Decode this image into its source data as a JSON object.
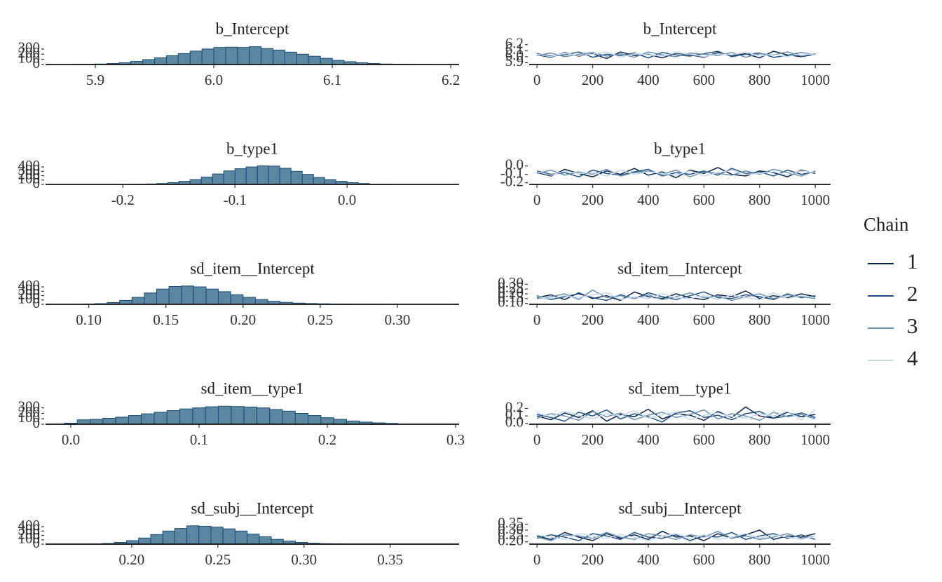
{
  "chart_data": [
    {
      "type": "histogram",
      "title": "b_Intercept",
      "color": "#5b87a3",
      "edgecolor": "#1c4a73",
      "bins": [
        5.88,
        5.89,
        5.9,
        5.91,
        5.92,
        5.93,
        5.94,
        5.95,
        5.96,
        5.97,
        5.98,
        5.99,
        6.0,
        6.01,
        6.02,
        6.03,
        6.04,
        6.05,
        6.06,
        6.07,
        6.08,
        6.09,
        6.1,
        6.11,
        6.12,
        6.13,
        6.14,
        6.15,
        6.16,
        6.17,
        6.18
      ],
      "values": [
        2,
        5,
        10,
        20,
        35,
        60,
        95,
        130,
        170,
        210,
        260,
        300,
        330,
        335,
        330,
        345,
        310,
        280,
        240,
        200,
        160,
        120,
        80,
        55,
        35,
        20,
        10,
        5,
        3,
        1
      ],
      "xlim": [
        5.858,
        6.207
      ],
      "ylim": [
        0,
        380
      ],
      "xticks": [
        5.9,
        {
          "value": 6.0,
          "label": "6.0"
        },
        6.1,
        6.2
      ],
      "yticks": [
        0,
        100,
        200,
        300
      ]
    },
    {
      "type": "line",
      "title": "b_Intercept",
      "x": [
        0,
        50,
        100,
        150,
        200,
        250,
        300,
        350,
        400,
        450,
        500,
        550,
        600,
        650,
        700,
        750,
        800,
        850,
        900,
        950,
        1000
      ],
      "series": [
        {
          "name": "1",
          "color": "#0b2447",
          "values": [
            6.03,
            5.99,
            6.07,
            6.01,
            6.05,
            5.97,
            6.08,
            6.02,
            6.04,
            5.98,
            6.06,
            6.03,
            5.99,
            6.07,
            6.02,
            6.05,
            5.98,
            6.09,
            6.03,
            6.0,
            6.04
          ]
        },
        {
          "name": "2",
          "color": "#24527f",
          "values": [
            6.05,
            6.01,
            6.03,
            6.08,
            5.99,
            6.04,
            6.02,
            6.06,
            5.98,
            6.07,
            6.03,
            6.01,
            6.05,
            6.09,
            6.0,
            6.04,
            6.06,
            5.99,
            6.02,
            6.07,
            6.03
          ]
        },
        {
          "name": "3",
          "color": "#6b8fb0",
          "values": [
            6.02,
            6.06,
            6.0,
            6.04,
            6.07,
            6.01,
            6.05,
            5.99,
            6.08,
            6.03,
            6.0,
            6.06,
            6.04,
            6.02,
            6.07,
            5.99,
            6.05,
            6.03,
            6.08,
            6.01,
            6.05
          ]
        },
        {
          "name": "4",
          "color": "#c6d9ec",
          "values": [
            6.04,
            6.0,
            6.06,
            6.02,
            6.04,
            6.08,
            5.99,
            6.05,
            6.03,
            6.01,
            6.07,
            6.04,
            6.0,
            6.05,
            6.03,
            6.08,
            6.01,
            6.04,
            6.0,
            6.06,
            6.03
          ]
        }
      ],
      "xlim": [
        -28,
        1055
      ],
      "ylim": [
        5.87,
        6.22
      ],
      "xticks": [
        0,
        200,
        400,
        600,
        800,
        1000
      ],
      "yticks": [
        5.9,
        {
          "value": 6.0,
          "label": "6.0"
        },
        6.1,
        6.2
      ]
    },
    {
      "type": "histogram",
      "title": "b_type1",
      "color": "#5b87a3",
      "edgecolor": "#1c4a73",
      "bins": [
        -0.2,
        -0.19,
        -0.18,
        -0.17,
        -0.16,
        -0.15,
        -0.14,
        -0.13,
        -0.12,
        -0.11,
        -0.1,
        -0.09,
        -0.08,
        -0.07,
        -0.06,
        -0.05,
        -0.04,
        -0.03,
        -0.02,
        -0.01,
        0.0,
        0.01,
        0.02,
        0.03,
        0.04
      ],
      "values": [
        2,
        5,
        10,
        20,
        40,
        70,
        110,
        170,
        240,
        310,
        360,
        400,
        425,
        420,
        370,
        300,
        230,
        160,
        110,
        70,
        40,
        20,
        8,
        3
      ],
      "xlim": [
        -0.269,
        0.1
      ],
      "ylim": [
        0,
        450
      ],
      "xticks": [
        -0.2,
        -0.1,
        {
          "value": 0,
          "label": "0.0"
        }
      ],
      "yticks": [
        0,
        100,
        200,
        300,
        400
      ]
    },
    {
      "type": "line",
      "title": "b_type1",
      "x": [
        0,
        50,
        100,
        150,
        200,
        250,
        300,
        350,
        400,
        450,
        500,
        550,
        600,
        650,
        700,
        750,
        800,
        850,
        900,
        950,
        1000
      ],
      "series": [
        {
          "name": "1",
          "color": "#0b2447",
          "values": [
            -0.08,
            -0.12,
            -0.04,
            -0.09,
            -0.13,
            -0.06,
            -0.1,
            -0.03,
            -0.11,
            -0.07,
            -0.14,
            -0.05,
            -0.09,
            -0.02,
            -0.1,
            -0.12,
            -0.06,
            -0.08,
            -0.13,
            -0.05,
            -0.09
          ]
        },
        {
          "name": "2",
          "color": "#24527f",
          "values": [
            -0.06,
            -0.1,
            -0.08,
            -0.13,
            -0.05,
            -0.09,
            -0.11,
            -0.07,
            -0.04,
            -0.12,
            -0.08,
            -0.1,
            -0.06,
            -0.11,
            -0.03,
            -0.09,
            -0.07,
            -0.12,
            -0.05,
            -0.1,
            -0.07
          ]
        },
        {
          "name": "3",
          "color": "#6b8fb0",
          "values": [
            -0.09,
            -0.05,
            -0.11,
            -0.07,
            -0.1,
            -0.04,
            -0.12,
            -0.08,
            -0.06,
            -0.1,
            -0.05,
            -0.13,
            -0.07,
            -0.09,
            -0.11,
            -0.06,
            -0.1,
            -0.04,
            -0.08,
            -0.12,
            -0.06
          ]
        },
        {
          "name": "4",
          "color": "#c6d9ec",
          "values": [
            -0.07,
            -0.11,
            -0.06,
            -0.09,
            -0.08,
            -0.12,
            -0.05,
            -0.1,
            -0.07,
            -0.09,
            -0.11,
            -0.06,
            -0.12,
            -0.08,
            -0.05,
            -0.1,
            -0.09,
            -0.07,
            -0.11,
            -0.06,
            -0.08
          ]
        }
      ],
      "xlim": [
        -28,
        1055
      ],
      "ylim": [
        -0.22,
        0.03
      ],
      "xticks": [
        0,
        200,
        400,
        600,
        800,
        1000
      ],
      "yticks": [
        -0.2,
        -0.1,
        {
          "value": 0,
          "label": "0.0"
        }
      ]
    },
    {
      "type": "histogram",
      "title": "sd_item__Intercept",
      "color": "#5b87a3",
      "edgecolor": "#1c4a73",
      "bins": [
        0.096,
        0.104,
        0.112,
        0.12,
        0.128,
        0.136,
        0.144,
        0.152,
        0.16,
        0.168,
        0.176,
        0.184,
        0.192,
        0.2,
        0.208,
        0.216,
        0.224,
        0.232,
        0.24,
        0.248,
        0.256,
        0.264,
        0.272,
        0.28,
        0.288,
        0.296,
        0.304
      ],
      "values": [
        5,
        15,
        40,
        90,
        160,
        260,
        350,
        410,
        420,
        400,
        350,
        290,
        220,
        160,
        110,
        70,
        45,
        28,
        18,
        12,
        8,
        5,
        3,
        2,
        1,
        1
      ],
      "xlim": [
        0.072,
        0.34
      ],
      "ylim": [
        0,
        450
      ],
      "xticks": [
        {
          "value": 0.1,
          "label": "0.10"
        },
        0.15,
        {
          "value": 0.2,
          "label": "0.20"
        },
        0.25,
        {
          "value": 0.3,
          "label": "0.30"
        }
      ],
      "yticks": [
        0,
        100,
        200,
        300,
        400
      ]
    },
    {
      "type": "line",
      "title": "sd_item__Intercept",
      "x": [
        0,
        50,
        100,
        150,
        200,
        250,
        300,
        350,
        400,
        450,
        500,
        550,
        600,
        650,
        700,
        750,
        800,
        850,
        900,
        950,
        1000
      ],
      "series": [
        {
          "name": "1",
          "color": "#0b2447",
          "values": [
            0.16,
            0.19,
            0.14,
            0.21,
            0.15,
            0.18,
            0.13,
            0.22,
            0.17,
            0.15,
            0.2,
            0.16,
            0.14,
            0.19,
            0.17,
            0.23,
            0.15,
            0.18,
            0.16,
            0.2,
            0.17
          ]
        },
        {
          "name": "2",
          "color": "#24527f",
          "values": [
            0.18,
            0.14,
            0.17,
            0.2,
            0.16,
            0.13,
            0.19,
            0.15,
            0.21,
            0.17,
            0.14,
            0.18,
            0.22,
            0.16,
            0.15,
            0.19,
            0.17,
            0.14,
            0.2,
            0.16,
            0.18
          ]
        },
        {
          "name": "3",
          "color": "#6b8fb0",
          "values": [
            0.15,
            0.17,
            0.2,
            0.14,
            0.24,
            0.16,
            0.18,
            0.15,
            0.19,
            0.14,
            0.17,
            0.21,
            0.16,
            0.18,
            0.13,
            0.17,
            0.2,
            0.15,
            0.19,
            0.17,
            0.15
          ]
        },
        {
          "name": "4",
          "color": "#c6d9ec",
          "values": [
            0.17,
            0.15,
            0.18,
            0.16,
            0.19,
            0.21,
            0.14,
            0.17,
            0.15,
            0.2,
            0.16,
            0.15,
            0.18,
            0.14,
            0.19,
            0.16,
            0.14,
            0.21,
            0.15,
            0.18,
            0.16
          ]
        }
      ],
      "xlim": [
        -28,
        1055
      ],
      "ylim": [
        0.09,
        0.31
      ],
      "xticks": [
        0,
        200,
        400,
        600,
        800,
        1000
      ],
      "yticks": [
        {
          "value": 0.1,
          "label": "0.10"
        },
        0.15,
        {
          "value": 0.2,
          "label": "0.20"
        },
        0.25,
        {
          "value": 0.3,
          "label": "0.30"
        }
      ]
    },
    {
      "type": "histogram",
      "title": "sd_item__type1",
      "color": "#5b87a3",
      "edgecolor": "#1c4a73",
      "bins": [
        -0.005,
        0.005,
        0.015,
        0.025,
        0.035,
        0.045,
        0.055,
        0.065,
        0.075,
        0.085,
        0.095,
        0.105,
        0.115,
        0.125,
        0.135,
        0.145,
        0.155,
        0.165,
        0.175,
        0.185,
        0.195,
        0.205,
        0.215,
        0.225,
        0.235,
        0.245,
        0.255
      ],
      "values": [
        20,
        80,
        90,
        110,
        130,
        160,
        190,
        220,
        250,
        280,
        300,
        320,
        330,
        325,
        315,
        300,
        270,
        240,
        200,
        160,
        120,
        90,
        60,
        40,
        25,
        15
      ],
      "xlim": [
        -0.0197,
        0.3027
      ],
      "ylim": [
        0,
        360
      ],
      "xticks": [
        {
          "value": 0,
          "label": "0.0"
        },
        0.1,
        0.2,
        0.3
      ],
      "yticks": [
        0,
        100,
        200,
        300
      ]
    },
    {
      "type": "line",
      "title": "sd_item__type1",
      "x": [
        0,
        50,
        100,
        150,
        200,
        250,
        300,
        350,
        400,
        450,
        500,
        550,
        600,
        650,
        700,
        750,
        800,
        850,
        900,
        950,
        1000
      ],
      "series": [
        {
          "name": "1",
          "color": "#0b2447",
          "values": [
            0.1,
            0.05,
            0.14,
            0.08,
            0.17,
            0.03,
            0.12,
            0.09,
            0.19,
            0.06,
            0.13,
            0.11,
            0.04,
            0.16,
            0.08,
            0.22,
            0.1,
            0.07,
            0.15,
            0.09,
            0.12
          ]
        },
        {
          "name": "2",
          "color": "#24527f",
          "values": [
            0.12,
            0.08,
            0.03,
            0.15,
            0.1,
            0.18,
            0.06,
            0.13,
            0.09,
            0.02,
            0.14,
            0.17,
            0.08,
            0.11,
            0.05,
            0.13,
            0.16,
            0.07,
            0.1,
            0.14,
            0.08
          ]
        },
        {
          "name": "3",
          "color": "#6b8fb0",
          "values": [
            0.07,
            0.13,
            0.1,
            0.04,
            0.16,
            0.09,
            0.14,
            0.05,
            0.11,
            0.15,
            0.08,
            0.12,
            0.18,
            0.06,
            0.13,
            0.1,
            0.04,
            0.15,
            0.09,
            0.12,
            0.06
          ]
        },
        {
          "name": "4",
          "color": "#c6d9ec",
          "values": [
            0.14,
            0.09,
            0.16,
            0.11,
            0.06,
            0.13,
            0.1,
            0.17,
            0.07,
            0.12,
            0.15,
            0.05,
            0.11,
            0.14,
            0.09,
            0.07,
            0.13,
            0.1,
            0.16,
            0.05,
            0.18
          ]
        }
      ],
      "xlim": [
        -28,
        1055
      ],
      "ylim": [
        -0.01,
        0.27
      ],
      "xticks": [
        0,
        200,
        400,
        600,
        800,
        1000
      ],
      "yticks": [
        {
          "value": 0,
          "label": "0.0"
        },
        0.1,
        0.2
      ]
    },
    {
      "type": "histogram",
      "title": "sd_subj__Intercept",
      "color": "#5b87a3",
      "edgecolor": "#1c4a73",
      "bins": [
        0.176,
        0.183,
        0.19,
        0.197,
        0.204,
        0.211,
        0.218,
        0.225,
        0.232,
        0.239,
        0.246,
        0.253,
        0.26,
        0.267,
        0.274,
        0.281,
        0.288,
        0.295,
        0.302,
        0.309,
        0.316,
        0.323
      ],
      "values": [
        3,
        15,
        40,
        80,
        140,
        220,
        300,
        360,
        420,
        410,
        390,
        350,
        300,
        230,
        170,
        110,
        70,
        40,
        20,
        10,
        5
      ],
      "xlim": [
        0.15,
        0.39
      ],
      "ylim": [
        0,
        450
      ],
      "xticks": [
        {
          "value": 0.2,
          "label": "0.20"
        },
        0.25,
        {
          "value": 0.3,
          "label": "0.30"
        },
        0.35
      ],
      "yticks": [
        0,
        100,
        200,
        300,
        400
      ]
    },
    {
      "type": "line",
      "title": "sd_subj__Intercept",
      "x": [
        0,
        50,
        100,
        150,
        200,
        250,
        300,
        350,
        400,
        450,
        500,
        550,
        600,
        650,
        700,
        750,
        800,
        850,
        900,
        950,
        1000
      ],
      "series": [
        {
          "name": "1",
          "color": "#0b2447",
          "values": [
            0.25,
            0.22,
            0.28,
            0.24,
            0.21,
            0.27,
            0.23,
            0.26,
            0.22,
            0.29,
            0.24,
            0.25,
            0.21,
            0.27,
            0.23,
            0.26,
            0.3,
            0.22,
            0.25,
            0.24,
            0.27
          ]
        },
        {
          "name": "2",
          "color": "#24527f",
          "values": [
            0.23,
            0.26,
            0.24,
            0.21,
            0.27,
            0.25,
            0.22,
            0.28,
            0.24,
            0.23,
            0.26,
            0.21,
            0.25,
            0.24,
            0.28,
            0.22,
            0.25,
            0.27,
            0.23,
            0.26,
            0.22
          ]
        },
        {
          "name": "3",
          "color": "#6b8fb0",
          "values": [
            0.24,
            0.21,
            0.26,
            0.25,
            0.23,
            0.28,
            0.24,
            0.22,
            0.27,
            0.25,
            0.22,
            0.26,
            0.24,
            0.29,
            0.23,
            0.25,
            0.22,
            0.24,
            0.27,
            0.23,
            0.25
          ]
        },
        {
          "name": "4",
          "color": "#c6d9ec",
          "values": [
            0.26,
            0.24,
            0.22,
            0.27,
            0.25,
            0.23,
            0.26,
            0.24,
            0.21,
            0.25,
            0.27,
            0.23,
            0.26,
            0.22,
            0.24,
            0.27,
            0.23,
            0.26,
            0.24,
            0.22,
            0.25
          ]
        }
      ],
      "xlim": [
        -28,
        1055
      ],
      "ylim": [
        0.18,
        0.36
      ],
      "xticks": [
        0,
        200,
        400,
        600,
        800,
        1000
      ],
      "yticks": [
        {
          "value": 0.2,
          "label": "0.20"
        },
        0.25,
        {
          "value": 0.3,
          "label": "0.30"
        },
        0.35
      ]
    }
  ],
  "legend": {
    "title": "Chain",
    "position": "right"
  }
}
